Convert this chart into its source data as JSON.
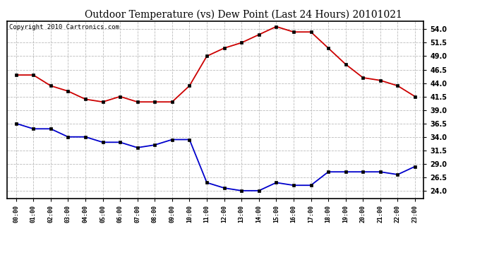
{
  "title": "Outdoor Temperature (vs) Dew Point (Last 24 Hours) 20101021",
  "copyright_text": "Copyright 2010 Cartronics.com",
  "x_labels": [
    "00:00",
    "01:00",
    "02:00",
    "03:00",
    "04:00",
    "05:00",
    "06:00",
    "07:00",
    "08:00",
    "09:00",
    "10:00",
    "11:00",
    "12:00",
    "13:00",
    "14:00",
    "15:00",
    "16:00",
    "17:00",
    "18:00",
    "19:00",
    "20:00",
    "21:00",
    "22:00",
    "23:00"
  ],
  "temp_data": [
    45.5,
    45.5,
    43.5,
    42.5,
    41.0,
    40.5,
    41.5,
    40.5,
    40.5,
    40.5,
    43.5,
    49.0,
    50.5,
    51.5,
    53.0,
    54.5,
    53.5,
    53.5,
    50.5,
    47.5,
    45.0,
    44.5,
    43.5,
    41.5
  ],
  "dew_data": [
    36.5,
    35.5,
    35.5,
    34.0,
    34.0,
    33.0,
    33.0,
    32.0,
    32.5,
    33.5,
    33.5,
    25.5,
    24.5,
    24.0,
    24.0,
    25.5,
    25.0,
    25.0,
    27.5,
    27.5,
    27.5,
    27.5,
    27.0,
    28.5
  ],
  "temp_color": "#cc0000",
  "dew_color": "#0000cc",
  "bg_color": "#ffffff",
  "plot_bg_color": "#ffffff",
  "grid_color": "#bbbbbb",
  "ylim": [
    22.5,
    55.5
  ],
  "yticks": [
    24.0,
    26.5,
    29.0,
    31.5,
    34.0,
    36.5,
    39.0,
    41.5,
    44.0,
    46.5,
    49.0,
    51.5,
    54.0
  ],
  "title_fontsize": 10,
  "copyright_fontsize": 6.5,
  "marker": "s",
  "marker_size": 3,
  "linewidth": 1.3
}
